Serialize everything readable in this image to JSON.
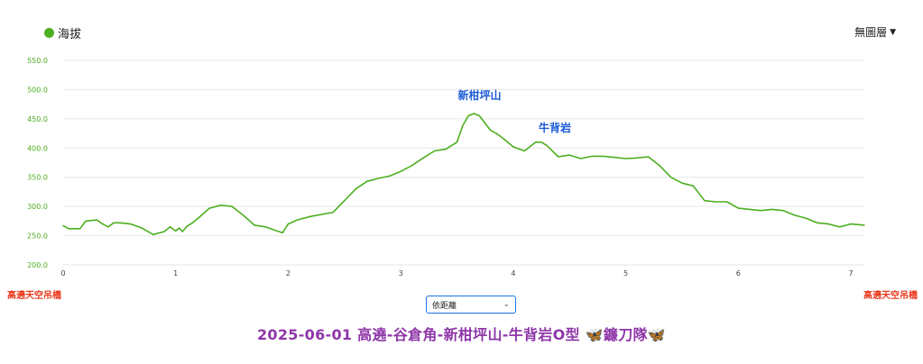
{
  "legend": {
    "label": "海拔",
    "color": "#4caf1f"
  },
  "layer_menu": {
    "label": "無圖層"
  },
  "endpoints": {
    "start": "高遶天空吊橋",
    "end": "高遶天空吊橋"
  },
  "mode_select": {
    "value": "依距離"
  },
  "title": "2025-06-01 高遶-谷倉角-新柑坪山-牛背岩O型 🦋鐮刀隊🦋",
  "colors": {
    "line": "#4caf1f",
    "annotation": "#1b5bd6",
    "endpoint": "#e8381c",
    "title": "#8e36a8",
    "axis": "#4caf1f"
  },
  "chart_data": {
    "type": "line",
    "xlim": [
      0,
      7.12
    ],
    "ylim": [
      200,
      550
    ],
    "x_ticks": [
      "0",
      "1",
      "2",
      "3",
      "4",
      "5",
      "6",
      "7"
    ],
    "y_ticks": [
      "200.0",
      "250.0",
      "300.0",
      "350.0",
      "400.0",
      "450.0",
      "500.0",
      "550.0"
    ],
    "grid": true,
    "series": [
      {
        "name": "海拔",
        "x": [
          0,
          0.05,
          0.15,
          0.2,
          0.3,
          0.35,
          0.4,
          0.45,
          0.5,
          0.6,
          0.7,
          0.8,
          0.9,
          0.95,
          1.0,
          1.03,
          1.06,
          1.1,
          1.15,
          1.2,
          1.3,
          1.4,
          1.5,
          1.6,
          1.7,
          1.8,
          1.9,
          1.95,
          2.0,
          2.08,
          2.2,
          2.4,
          2.6,
          2.7,
          2.8,
          2.9,
          3.0,
          3.1,
          3.2,
          3.3,
          3.4,
          3.5,
          3.55,
          3.6,
          3.65,
          3.7,
          3.75,
          3.8,
          3.85,
          3.9,
          4.0,
          4.1,
          4.2,
          4.25,
          4.3,
          4.4,
          4.5,
          4.6,
          4.7,
          4.8,
          4.9,
          5.0,
          5.1,
          5.2,
          5.3,
          5.4,
          5.5,
          5.6,
          5.7,
          5.8,
          5.9,
          6.0,
          6.1,
          6.2,
          6.3,
          6.4,
          6.5,
          6.6,
          6.7,
          6.8,
          6.9,
          7.0,
          7.12
        ],
        "values": [
          267,
          262,
          262,
          275,
          277,
          270,
          265,
          272,
          272,
          270,
          263,
          252,
          257,
          265,
          258,
          263,
          257,
          266,
          272,
          280,
          297,
          302,
          300,
          285,
          268,
          265,
          258,
          255,
          270,
          277,
          283,
          290,
          330,
          343,
          348,
          352,
          360,
          370,
          383,
          395,
          398,
          410,
          438,
          455,
          459,
          455,
          442,
          430,
          425,
          418,
          402,
          395,
          410,
          410,
          404,
          385,
          388,
          382,
          386,
          386,
          384,
          382,
          383,
          385,
          370,
          350,
          340,
          335,
          310,
          308,
          308,
          297,
          295,
          293,
          295,
          293,
          285,
          280,
          272,
          270,
          265,
          270,
          268
        ]
      }
    ],
    "annotations": [
      {
        "text": "新柑坪山",
        "x": 3.7,
        "y": 484
      },
      {
        "text": "牛背岩",
        "x": 4.37,
        "y": 428
      }
    ]
  }
}
